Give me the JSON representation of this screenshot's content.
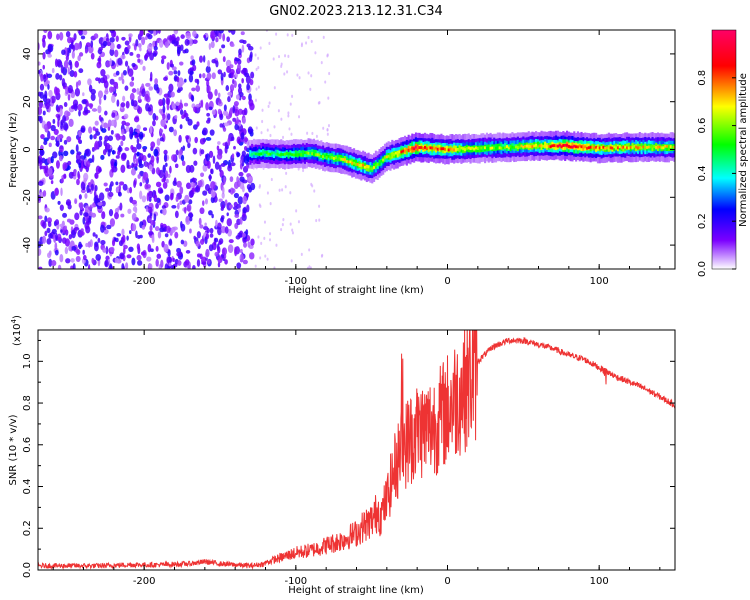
{
  "figure_title": "GN02.2023.213.12.31.C34",
  "chart_data": [
    {
      "type": "heatmap",
      "title": "GN02.2023.213.12.31.C34",
      "xlabel": "Height of straight line (km)",
      "ylabel": "Frequency (Hz)",
      "xlim": [
        -270,
        150
      ],
      "ylim": [
        -50,
        50
      ],
      "x_ticks": [
        -200,
        -100,
        0,
        100
      ],
      "x_tick_labels": [
        "-200",
        "-100",
        "0",
        "100"
      ],
      "y_ticks": [
        -40,
        -20,
        0,
        20,
        40
      ],
      "y_tick_labels": [
        "-40",
        "-20",
        "0",
        "20",
        "40"
      ],
      "colorbar": {
        "label": "Normalized spectral amplitude",
        "range": [
          0,
          1
        ],
        "ticks": [
          0,
          0.2,
          0.4,
          0.6,
          0.8
        ],
        "tick_labels": [
          "0.0",
          "0.2",
          "0.4",
          "0.6",
          "0.8"
        ],
        "colors": [
          "#ffffff",
          "#7b00ff",
          "#0000ff",
          "#00ffff",
          "#00ff00",
          "#ffff00",
          "#ff0000",
          "#ff0066"
        ]
      },
      "noise_region_x": [
        -270,
        -128
      ],
      "ridge": {
        "x": [
          -130,
          -120,
          -110,
          -100,
          -90,
          -80,
          -70,
          -60,
          -55,
          -50,
          -45,
          -40,
          -35,
          -30,
          -25,
          -20,
          -10,
          0,
          20,
          40,
          60,
          80,
          90,
          100,
          120,
          150
        ],
        "y": [
          -2,
          -1.5,
          -2,
          -2,
          -1.5,
          -3,
          -4,
          -6,
          -7,
          -8,
          -6,
          -3,
          -2,
          -1,
          0,
          1,
          0.5,
          0,
          0.5,
          1,
          1.5,
          1.5,
          1,
          0.5,
          1,
          1
        ],
        "amplitude": [
          0.45,
          0.5,
          0.5,
          0.55,
          0.55,
          0.6,
          0.65,
          0.7,
          0.7,
          0.65,
          0.6,
          0.65,
          0.7,
          0.8,
          0.85,
          0.9,
          0.8,
          0.75,
          0.6,
          0.6,
          0.7,
          0.9,
          0.8,
          0.75,
          0.7,
          0.65
        ]
      }
    },
    {
      "type": "line",
      "xlabel": "Height of straight line (km)",
      "ylabel": "SNR (10 * v/v)",
      "y_multiplier_label": "(x10",
      "y_multiplier_exponent": "4",
      "xlim": [
        -270,
        150
      ],
      "ylim": [
        0,
        1.15
      ],
      "x_ticks": [
        -200,
        -100,
        0,
        100
      ],
      "x_tick_labels": [
        "-200",
        "-100",
        "0",
        "100"
      ],
      "y_ticks": [
        0,
        0.2,
        0.4,
        0.6,
        0.8,
        1.0
      ],
      "y_tick_labels": [
        "0.0",
        "0.2",
        "0.4",
        "0.6",
        "0.8",
        "1.0"
      ],
      "line_color": "#ee3333",
      "series": [
        {
          "x": [
            -270,
            -250,
            -230,
            -210,
            -190,
            -170,
            -160,
            -150,
            -130,
            -120,
            -110,
            -100,
            -90,
            -80,
            -70,
            -60,
            -55,
            -50,
            -45,
            -40,
            -35,
            -30,
            -25,
            -20,
            -15,
            -10,
            -5,
            0,
            10,
            20,
            30,
            40,
            50,
            60,
            70,
            80,
            90,
            100,
            105,
            110,
            120,
            130,
            140,
            150
          ],
          "y": [
            0.02,
            0.02,
            0.02,
            0.025,
            0.025,
            0.03,
            0.04,
            0.03,
            0.02,
            0.03,
            0.05,
            0.07,
            0.08,
            0.1,
            0.12,
            0.15,
            0.18,
            0.2,
            0.25,
            0.35,
            0.5,
            0.6,
            0.65,
            0.7,
            0.7,
            0.72,
            0.75,
            0.8,
            0.9,
            1.0,
            1.07,
            1.1,
            1.1,
            1.08,
            1.06,
            1.03,
            1.01,
            0.97,
            0.95,
            0.93,
            0.9,
            0.87,
            0.83,
            0.79
          ]
        }
      ]
    }
  ]
}
